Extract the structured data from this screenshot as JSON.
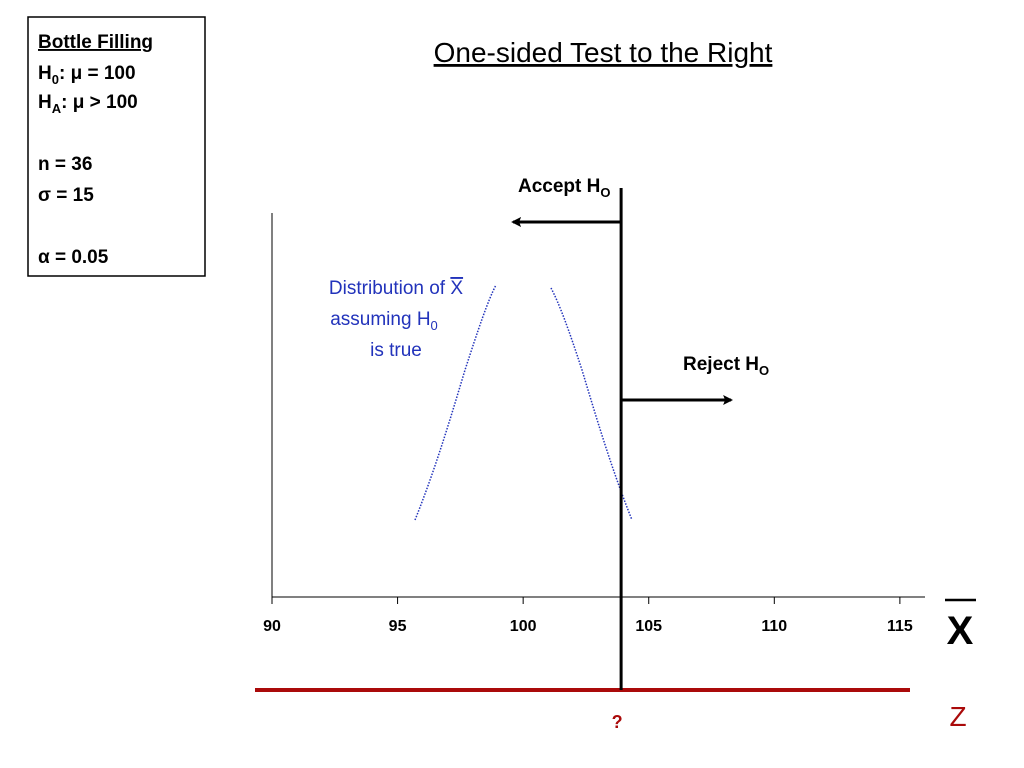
{
  "title": "One-sided Test to the Right",
  "info_box": {
    "heading": "Bottle Filling",
    "null_hypothesis": {
      "symbol": "H",
      "sub": "0",
      "text": ": μ = 100"
    },
    "alt_hypothesis": {
      "symbol": "H",
      "sub": "A",
      "text": ": μ > 100"
    },
    "sample_size": "n = 36",
    "sigma": "σ = 15",
    "alpha": "α = 0.05"
  },
  "chart_data": {
    "type": "hypothesis-test",
    "xlabel": "X",
    "z_label": "Z",
    "z_critical": "?",
    "xlim": [
      90,
      116
    ],
    "xticks": [
      90,
      95,
      100,
      105,
      110,
      115
    ],
    "critical_value": 103.9,
    "accept_label": {
      "text": "Accept H",
      "sub": "O"
    },
    "reject_label": {
      "text": "Reject H",
      "sub": "O"
    },
    "curve_label": {
      "line1": "Distribution of ",
      "line1_symbol": "X",
      "line2": "assuming H",
      "line2_sub": "0",
      "line3": "is true"
    }
  }
}
